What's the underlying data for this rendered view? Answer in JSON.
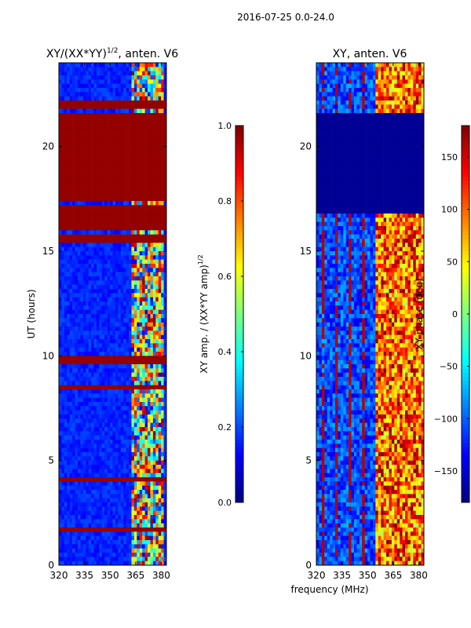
{
  "suptitle": "2016-07-25 0.0-24.0",
  "shared_xlabel": "frequency (MHz)",
  "chart_data": [
    {
      "type": "heatmap",
      "title_main": "XY/(XX*YY)",
      "title_sup": "1/2",
      "title_tail": ", anten. V6",
      "xlabel": "",
      "ylabel": "UT (hours)",
      "xlim": [
        320,
        383
      ],
      "ylim": [
        0,
        24
      ],
      "xticks": [
        320,
        335,
        350,
        365,
        380
      ],
      "yticks": [
        0,
        5,
        10,
        15,
        20
      ],
      "colormap": "jet",
      "colorbar": {
        "label_main": "XY amp. / (XX*YY amp)",
        "label_sup": "1/2",
        "range": [
          0.0,
          1.0
        ],
        "ticks": [
          "0.0",
          "0.2",
          "0.4",
          "0.6",
          "0.8",
          "1.0"
        ]
      },
      "background_value": 0.12,
      "flagged_ut_ranges": [
        [
          17.0,
          17.2
        ],
        [
          17.5,
          21.5
        ],
        [
          21.9,
          22.1
        ],
        [
          9.6,
          9.9
        ],
        [
          8.4,
          8.6
        ],
        [
          4.1,
          4.3
        ],
        [
          1.6,
          1.8
        ],
        [
          15.5,
          15.7
        ],
        [
          16.1,
          16.3
        ],
        [
          16.5,
          16.9
        ]
      ],
      "high_channel_range_mhz": [
        363,
        381
      ]
    },
    {
      "type": "heatmap",
      "title_main": "XY, anten. V6",
      "title_sup": "",
      "title_tail": "",
      "xlabel": "frequency (MHz)",
      "ylabel": "",
      "xlim": [
        320,
        383
      ],
      "ylim": [
        0,
        24
      ],
      "xticks": [
        320,
        335,
        350,
        365,
        380
      ],
      "yticks": [
        0,
        5,
        10,
        15,
        20
      ],
      "colormap": "jet",
      "colorbar": {
        "label_main": "XY phase (deg)",
        "label_sup": "",
        "range": [
          -180,
          180
        ],
        "ticks": [
          "−150",
          "−100",
          "−50",
          "0",
          "50",
          "100",
          "150"
        ]
      },
      "flagged_ut_ranges": [
        [
          16.9,
          21.5
        ]
      ],
      "high_channel_range_mhz": [
        355,
        383
      ]
    }
  ]
}
